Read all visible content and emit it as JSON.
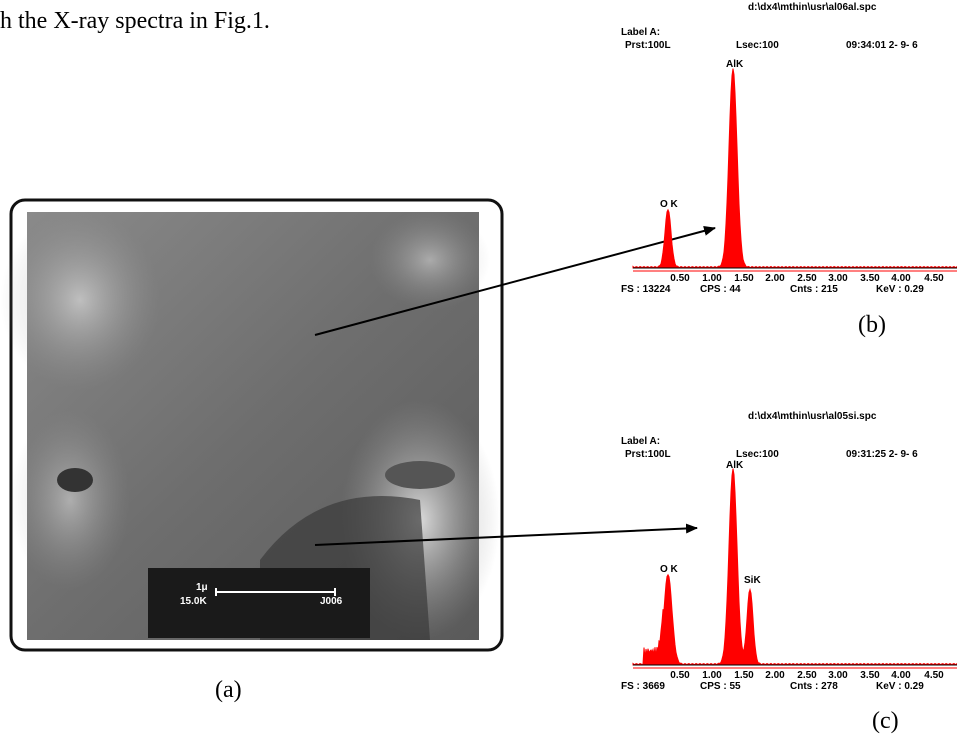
{
  "intro_text": "h the X-ray spectra in Fig.1.",
  "figure_a": {
    "scale_bar": {
      "length": "1μ",
      "magnification": "15.0K",
      "id": "J006"
    },
    "caption": "(a)"
  },
  "spectra": [
    {
      "file": "d:\\dx4\\mthin\\usr\\al06al.spc",
      "label": "Label A:",
      "preset": "Prst:100L",
      "livetime": "Lsec:100",
      "time": "09:34:01  2- 9- 6",
      "peaks": [
        "O K",
        "AlK"
      ],
      "axis_ticks": [
        "0.50",
        "1.00",
        "1.50",
        "2.00",
        "2.50",
        "3.00",
        "3.50",
        "4.00",
        "4.50"
      ],
      "footer": {
        "fs": "FS : 13224",
        "cps": "CPS : 44",
        "cnts": "Cnts : 215",
        "kev": "KeV : 0.29"
      },
      "caption": "(b)"
    },
    {
      "file": "d:\\dx4\\mthin\\usr\\al05si.spc",
      "label": "Label A:",
      "preset": "Prst:100L",
      "livetime": "Lsec:100",
      "time": "09:31:25  2- 9- 6",
      "peaks": [
        "O K",
        "AlK",
        "SiK"
      ],
      "axis_ticks": [
        "0.50",
        "1.00",
        "1.50",
        "2.00",
        "2.50",
        "3.00",
        "3.50",
        "4.00",
        "4.50"
      ],
      "footer": {
        "fs": "FS : 3669",
        "cps": "CPS : 55",
        "cnts": "Cnts : 278",
        "kev": "KeV : 0.29"
      },
      "caption": "(c)"
    }
  ]
}
